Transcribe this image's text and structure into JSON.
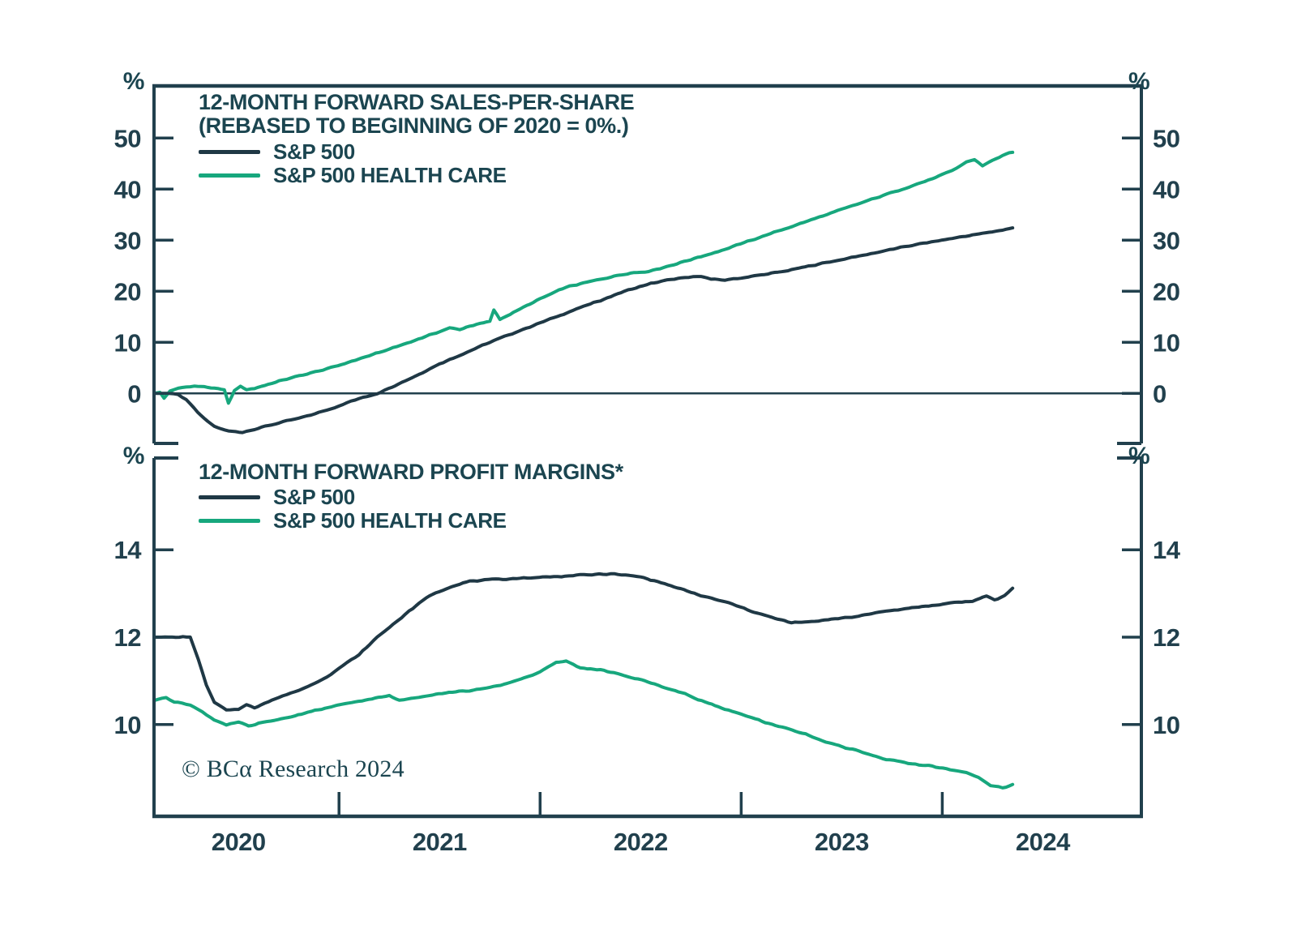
{
  "colors": {
    "ink": "#21404d",
    "sp500": "#1f3845",
    "healthcare": "#17a77d",
    "background": "#ffffff"
  },
  "footer": {
    "copyright": "© BCα Research 2024"
  },
  "x_axis": {
    "domain": [
      2020.08,
      2024.99
    ],
    "tick_years": [
      2021,
      2022,
      2023,
      2024
    ],
    "year_labels": [
      "2020",
      "2021",
      "2022",
      "2023",
      "2024"
    ],
    "label_center_years": [
      2020.5,
      2021.5,
      2022.5,
      2023.5,
      2024.5
    ]
  },
  "chart_data": [
    {
      "type": "line",
      "panel": "top",
      "title_line1": "12-MONTH FORWARD SALES-PER-SHARE",
      "title_line2": "(REBASED TO BEGINNING OF 2020 = 0%.)",
      "unit_label": "%",
      "ylim": [
        -9.8,
        60.2
      ],
      "y_ticks": [
        0,
        10,
        20,
        30,
        40,
        50
      ],
      "zero_line": 0,
      "legend": [
        {
          "label": "S&P 500",
          "color": "#1f3845"
        },
        {
          "label": "S&P 500 HEALTH CARE",
          "color": "#17a77d"
        }
      ],
      "series": [
        {
          "name": "S&P 500",
          "color": "#1f3845",
          "points": [
            [
              2020.08,
              0
            ],
            [
              2020.16,
              0
            ],
            [
              2020.2,
              -0.2
            ],
            [
              2020.24,
              -1.2
            ],
            [
              2020.28,
              -3.0
            ],
            [
              2020.33,
              -5.0
            ],
            [
              2020.38,
              -6.5
            ],
            [
              2020.45,
              -7.4
            ],
            [
              2020.52,
              -7.6
            ],
            [
              2020.58,
              -7.0
            ],
            [
              2020.65,
              -6.3
            ],
            [
              2020.72,
              -5.6
            ],
            [
              2020.8,
              -4.9
            ],
            [
              2020.88,
              -4.0
            ],
            [
              2020.96,
              -3.0
            ],
            [
              2021.04,
              -1.8
            ],
            [
              2021.12,
              -0.8
            ],
            [
              2021.19,
              0
            ],
            [
              2021.28,
              1.6
            ],
            [
              2021.38,
              3.4
            ],
            [
              2021.5,
              5.8
            ],
            [
              2021.62,
              7.8
            ],
            [
              2021.75,
              10.0
            ],
            [
              2021.88,
              12.0
            ],
            [
              2022.0,
              13.8
            ],
            [
              2022.1,
              15.3
            ],
            [
              2022.2,
              16.8
            ],
            [
              2022.3,
              18.2
            ],
            [
              2022.42,
              20.0
            ],
            [
              2022.55,
              21.5
            ],
            [
              2022.65,
              22.3
            ],
            [
              2022.72,
              22.6
            ],
            [
              2022.8,
              23.0
            ],
            [
              2022.85,
              22.3
            ],
            [
              2022.92,
              22.2
            ],
            [
              2023.0,
              22.6
            ],
            [
              2023.1,
              23.2
            ],
            [
              2023.2,
              23.8
            ],
            [
              2023.3,
              24.6
            ],
            [
              2023.42,
              25.6
            ],
            [
              2023.55,
              26.6
            ],
            [
              2023.7,
              27.8
            ],
            [
              2023.85,
              29.0
            ],
            [
              2024.0,
              30.0
            ],
            [
              2024.1,
              30.7
            ],
            [
              2024.2,
              31.3
            ],
            [
              2024.3,
              32.0
            ],
            [
              2024.35,
              32.4
            ]
          ]
        },
        {
          "name": "S&P 500 HEALTH CARE",
          "color": "#17a77d",
          "points": [
            [
              2020.08,
              0
            ],
            [
              2020.11,
              0.2
            ],
            [
              2020.13,
              -0.9
            ],
            [
              2020.16,
              0.4
            ],
            [
              2020.2,
              1.0
            ],
            [
              2020.24,
              1.3
            ],
            [
              2020.28,
              1.4
            ],
            [
              2020.33,
              1.3
            ],
            [
              2020.38,
              1.0
            ],
            [
              2020.43,
              0.6
            ],
            [
              2020.45,
              -1.9
            ],
            [
              2020.48,
              0.5
            ],
            [
              2020.51,
              1.4
            ],
            [
              2020.54,
              0.7
            ],
            [
              2020.58,
              1.0
            ],
            [
              2020.65,
              1.8
            ],
            [
              2020.72,
              2.6
            ],
            [
              2020.8,
              3.4
            ],
            [
              2020.88,
              4.2
            ],
            [
              2020.96,
              5.0
            ],
            [
              2021.08,
              6.5
            ],
            [
              2021.2,
              8.0
            ],
            [
              2021.32,
              9.6
            ],
            [
              2021.45,
              11.4
            ],
            [
              2021.55,
              12.8
            ],
            [
              2021.6,
              12.5
            ],
            [
              2021.65,
              13.2
            ],
            [
              2021.72,
              13.8
            ],
            [
              2021.75,
              14.1
            ],
            [
              2021.77,
              16.3
            ],
            [
              2021.8,
              14.5
            ],
            [
              2021.9,
              16.5
            ],
            [
              2022.0,
              18.5
            ],
            [
              2022.13,
              20.8
            ],
            [
              2022.25,
              21.9
            ],
            [
              2022.35,
              22.8
            ],
            [
              2022.45,
              23.6
            ],
            [
              2022.52,
              23.8
            ],
            [
              2022.58,
              24.3
            ],
            [
              2022.68,
              25.4
            ],
            [
              2022.8,
              26.8
            ],
            [
              2022.92,
              28.2
            ],
            [
              2023.05,
              30.0
            ],
            [
              2023.2,
              32.0
            ],
            [
              2023.35,
              34.0
            ],
            [
              2023.5,
              36.0
            ],
            [
              2023.65,
              38.0
            ],
            [
              2023.8,
              40.0
            ],
            [
              2023.95,
              42.0
            ],
            [
              2024.05,
              43.6
            ],
            [
              2024.12,
              45.3
            ],
            [
              2024.16,
              45.8
            ],
            [
              2024.2,
              44.6
            ],
            [
              2024.25,
              45.6
            ],
            [
              2024.3,
              46.6
            ],
            [
              2024.35,
              47.2
            ]
          ]
        }
      ]
    },
    {
      "type": "line",
      "panel": "bottom",
      "title": "12-MONTH FORWARD PROFIT MARGINS*",
      "unit_label": "%",
      "ylim": [
        7.9,
        16.1
      ],
      "y_ticks": [
        10,
        12,
        14
      ],
      "legend": [
        {
          "label": "S&P 500",
          "color": "#1f3845"
        },
        {
          "label": "S&P 500 HEALTH CARE",
          "color": "#17a77d"
        }
      ],
      "series": [
        {
          "name": "S&P 500",
          "color": "#1f3845",
          "points": [
            [
              2020.08,
              12.0
            ],
            [
              2020.26,
              12.0
            ],
            [
              2020.3,
              11.5
            ],
            [
              2020.34,
              10.9
            ],
            [
              2020.38,
              10.5
            ],
            [
              2020.44,
              10.33
            ],
            [
              2020.5,
              10.36
            ],
            [
              2020.54,
              10.45
            ],
            [
              2020.58,
              10.38
            ],
            [
              2020.63,
              10.5
            ],
            [
              2020.7,
              10.62
            ],
            [
              2020.78,
              10.75
            ],
            [
              2020.86,
              10.9
            ],
            [
              2020.94,
              11.1
            ],
            [
              2021.02,
              11.35
            ],
            [
              2021.1,
              11.6
            ],
            [
              2021.19,
              12.0
            ],
            [
              2021.27,
              12.3
            ],
            [
              2021.35,
              12.6
            ],
            [
              2021.45,
              12.95
            ],
            [
              2021.55,
              13.15
            ],
            [
              2021.65,
              13.28
            ],
            [
              2021.78,
              13.32
            ],
            [
              2021.9,
              13.35
            ],
            [
              2022.05,
              13.38
            ],
            [
              2022.2,
              13.42
            ],
            [
              2022.35,
              13.45
            ],
            [
              2022.5,
              13.38
            ],
            [
              2022.6,
              13.25
            ],
            [
              2022.7,
              13.1
            ],
            [
              2022.8,
              12.95
            ],
            [
              2022.94,
              12.78
            ],
            [
              2023.05,
              12.6
            ],
            [
              2023.15,
              12.45
            ],
            [
              2023.25,
              12.33
            ],
            [
              2023.35,
              12.35
            ],
            [
              2023.45,
              12.42
            ],
            [
              2023.55,
              12.45
            ],
            [
              2023.65,
              12.55
            ],
            [
              2023.78,
              12.63
            ],
            [
              2023.9,
              12.7
            ],
            [
              2024.0,
              12.75
            ],
            [
              2024.08,
              12.8
            ],
            [
              2024.15,
              12.82
            ],
            [
              2024.22,
              12.95
            ],
            [
              2024.26,
              12.85
            ],
            [
              2024.31,
              12.95
            ],
            [
              2024.35,
              13.12
            ]
          ]
        },
        {
          "name": "S&P 500 HEALTH CARE",
          "color": "#17a77d",
          "points": [
            [
              2020.08,
              10.55
            ],
            [
              2020.14,
              10.63
            ],
            [
              2020.18,
              10.52
            ],
            [
              2020.26,
              10.45
            ],
            [
              2020.32,
              10.3
            ],
            [
              2020.38,
              10.1
            ],
            [
              2020.44,
              9.98
            ],
            [
              2020.5,
              10.06
            ],
            [
              2020.55,
              9.96
            ],
            [
              2020.6,
              10.02
            ],
            [
              2020.68,
              10.1
            ],
            [
              2020.78,
              10.2
            ],
            [
              2020.88,
              10.32
            ],
            [
              2020.98,
              10.42
            ],
            [
              2021.08,
              10.52
            ],
            [
              2021.18,
              10.6
            ],
            [
              2021.25,
              10.66
            ],
            [
              2021.3,
              10.55
            ],
            [
              2021.38,
              10.62
            ],
            [
              2021.48,
              10.7
            ],
            [
              2021.58,
              10.75
            ],
            [
              2021.7,
              10.8
            ],
            [
              2021.82,
              10.92
            ],
            [
              2021.94,
              11.1
            ],
            [
              2022.0,
              11.2
            ],
            [
              2022.08,
              11.42
            ],
            [
              2022.13,
              11.45
            ],
            [
              2022.2,
              11.3
            ],
            [
              2022.3,
              11.25
            ],
            [
              2022.42,
              11.12
            ],
            [
              2022.52,
              11.0
            ],
            [
              2022.62,
              10.85
            ],
            [
              2022.72,
              10.7
            ],
            [
              2022.82,
              10.52
            ],
            [
              2022.92,
              10.35
            ],
            [
              2023.02,
              10.2
            ],
            [
              2023.12,
              10.05
            ],
            [
              2023.22,
              9.92
            ],
            [
              2023.32,
              9.78
            ],
            [
              2023.42,
              9.6
            ],
            [
              2023.52,
              9.47
            ],
            [
              2023.62,
              9.35
            ],
            [
              2023.72,
              9.2
            ],
            [
              2023.85,
              9.1
            ],
            [
              2023.95,
              9.05
            ],
            [
              2024.02,
              8.98
            ],
            [
              2024.1,
              8.92
            ],
            [
              2024.18,
              8.8
            ],
            [
              2024.24,
              8.6
            ],
            [
              2024.3,
              8.55
            ],
            [
              2024.35,
              8.63
            ]
          ]
        }
      ]
    }
  ]
}
